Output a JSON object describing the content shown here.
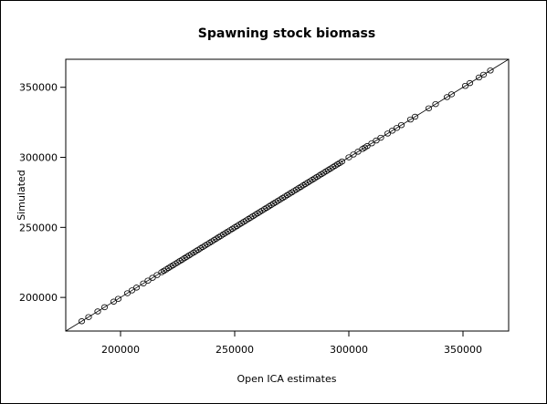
{
  "chart_data": {
    "type": "scatter",
    "title": "Spawning stock biomass",
    "xlabel": "Open ICA estimates",
    "ylabel": "Simulated",
    "xlim": [
      176000,
      370000
    ],
    "ylim": [
      176000,
      370000
    ],
    "xticks": [
      200000,
      250000,
      300000,
      350000
    ],
    "yticks": [
      200000,
      250000,
      300000,
      350000
    ],
    "xtick_labels": [
      "200000",
      "250000",
      "300000",
      "350000"
    ],
    "ytick_labels": [
      "200000",
      "250000",
      "300000",
      "350000"
    ],
    "reference_line": "y = x",
    "grid": false,
    "marker": "open-circle",
    "x": [
      183000,
      186000,
      190000,
      193000,
      197000,
      199000,
      203000,
      205000,
      207000,
      210000,
      212000,
      214000,
      216000,
      218000,
      219000,
      220000,
      221000,
      222000,
      223000,
      224000,
      225000,
      226000,
      227000,
      228000,
      229000,
      230000,
      231000,
      232000,
      233000,
      234000,
      235000,
      236000,
      237000,
      238000,
      239000,
      240000,
      241000,
      242000,
      243000,
      244000,
      245000,
      246000,
      247000,
      248000,
      249000,
      250000,
      251000,
      252000,
      253000,
      254000,
      255000,
      256000,
      257000,
      258000,
      259000,
      260000,
      261000,
      262000,
      263000,
      264000,
      265000,
      266000,
      267000,
      268000,
      269000,
      270000,
      271000,
      272000,
      273000,
      274000,
      275000,
      276000,
      277000,
      278000,
      279000,
      280000,
      281000,
      282000,
      283000,
      284000,
      285000,
      286000,
      287000,
      288000,
      289000,
      290000,
      291000,
      292000,
      293000,
      294000,
      295000,
      296000,
      297000,
      300000,
      302000,
      304000,
      306000,
      307000,
      308000,
      310000,
      312000,
      314000,
      317000,
      319000,
      321000,
      323000,
      327000,
      329000,
      335000,
      338000,
      343000,
      345000,
      351000,
      353000,
      357000,
      359000,
      362000
    ],
    "y": [
      183000,
      186000,
      190000,
      193000,
      197000,
      199000,
      203000,
      205000,
      207000,
      210000,
      212000,
      214000,
      216000,
      218000,
      219000,
      220000,
      221000,
      222000,
      223000,
      224000,
      225000,
      226000,
      227000,
      228000,
      229000,
      230000,
      231000,
      232000,
      233000,
      234000,
      235000,
      236000,
      237000,
      238000,
      239000,
      240000,
      241000,
      242000,
      243000,
      244000,
      245000,
      246000,
      247000,
      248000,
      249000,
      250000,
      251000,
      252000,
      253000,
      254000,
      255000,
      256000,
      257000,
      258000,
      259000,
      260000,
      261000,
      262000,
      263000,
      264000,
      265000,
      266000,
      267000,
      268000,
      269000,
      270000,
      271000,
      272000,
      273000,
      274000,
      275000,
      276000,
      277000,
      278000,
      279000,
      280000,
      281000,
      282000,
      283000,
      284000,
      285000,
      286000,
      287000,
      288000,
      289000,
      290000,
      291000,
      292000,
      293000,
      294000,
      295000,
      296000,
      297000,
      300000,
      302000,
      304000,
      306000,
      307000,
      308000,
      310000,
      312000,
      314000,
      317000,
      319000,
      321000,
      323000,
      327000,
      329000,
      335000,
      338000,
      343000,
      345000,
      351000,
      353000,
      357000,
      359000,
      362000
    ]
  }
}
